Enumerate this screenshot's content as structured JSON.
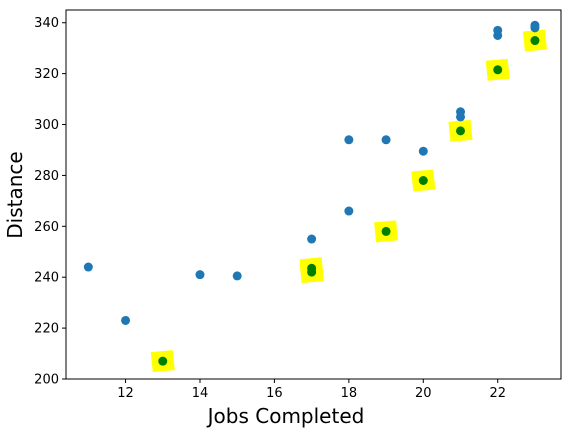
{
  "chart_data": {
    "type": "scatter",
    "title": "",
    "xlabel": "Jobs Completed",
    "ylabel": "Distance",
    "xlim": [
      10.4,
      23.7
    ],
    "ylim": [
      200,
      345
    ],
    "x_ticks": [
      12,
      14,
      16,
      18,
      20,
      22
    ],
    "y_ticks": [
      200,
      220,
      240,
      260,
      280,
      300,
      320,
      340
    ],
    "grid": false,
    "legend": "none",
    "series": [
      {
        "color": "#1f77b4",
        "marker": "circle",
        "points": [
          {
            "x": 11,
            "y": 244
          },
          {
            "x": 12,
            "y": 223
          },
          {
            "x": 14,
            "y": 241
          },
          {
            "x": 15,
            "y": 240.5
          },
          {
            "x": 17,
            "y": 255
          },
          {
            "x": 18,
            "y": 294
          },
          {
            "x": 18,
            "y": 266
          },
          {
            "x": 19,
            "y": 294
          },
          {
            "x": 20,
            "y": 289.5
          },
          {
            "x": 21,
            "y": 305
          },
          {
            "x": 21,
            "y": 303
          },
          {
            "x": 22,
            "y": 337
          },
          {
            "x": 22,
            "y": 335
          },
          {
            "x": 23,
            "y": 339
          },
          {
            "x": 23,
            "y": 338
          }
        ]
      },
      {
        "color": "#007f00",
        "marker": "circle",
        "highlight_color": "#ffff00",
        "points": [
          {
            "x": 13,
            "y": 207
          },
          {
            "x": 17,
            "y": 243.5
          },
          {
            "x": 17,
            "y": 242
          },
          {
            "x": 19,
            "y": 258
          },
          {
            "x": 20,
            "y": 278
          },
          {
            "x": 21,
            "y": 297.5
          },
          {
            "x": 22,
            "y": 321.5
          },
          {
            "x": 23,
            "y": 333
          }
        ]
      }
    ]
  }
}
